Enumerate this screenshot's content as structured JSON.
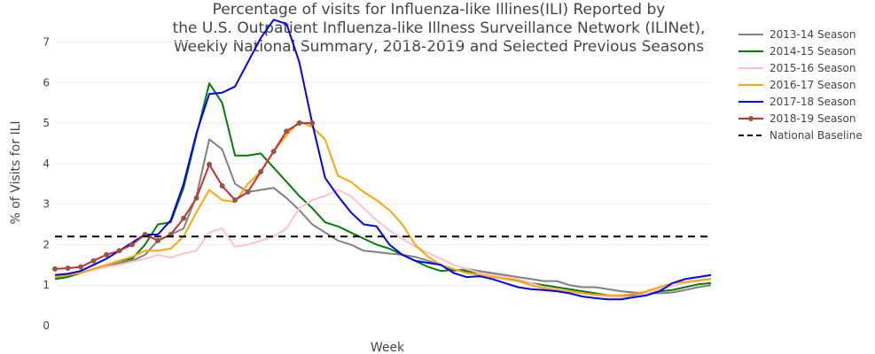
{
  "chart_data": {
    "type": "line",
    "title_lines": [
      "Percentage of visits for Influenza-like Illines(ILI) Reported by",
      "the U.S. Outpatient Influenza-like Illness Surveillance Network (ILINet),",
      "Weekly National Summary, 2018-2019 and Selected Previous Seasons"
    ],
    "xlabel": "Week",
    "ylabel": "% of Visits for ILI",
    "yticks": [
      0,
      1,
      2,
      3,
      4,
      5,
      6,
      7
    ],
    "ylim": [
      0,
      7.6
    ],
    "n_weeks": 52,
    "grid": true,
    "legend_position": "right",
    "series": [
      {
        "name": "2013-14 Season",
        "color": "#808080",
        "dash": false,
        "markers": false,
        "values": [
          1.2,
          1.25,
          1.3,
          1.4,
          1.45,
          1.55,
          1.6,
          1.75,
          2.1,
          2.25,
          2.4,
          3.2,
          4.6,
          4.35,
          3.5,
          3.3,
          3.35,
          3.4,
          3.15,
          2.85,
          2.5,
          2.3,
          2.1,
          2.0,
          1.85,
          1.82,
          1.78,
          1.75,
          1.7,
          1.6,
          1.5,
          1.35,
          1.4,
          1.35,
          1.3,
          1.25,
          1.2,
          1.15,
          1.1,
          1.1,
          1.0,
          0.95,
          0.95,
          0.9,
          0.85,
          0.82,
          0.8,
          0.8,
          0.82,
          0.88,
          0.95,
          1.0
        ]
      },
      {
        "name": "2014-15 Season",
        "color": "#008000",
        "dash": false,
        "markers": false,
        "values": [
          1.15,
          1.2,
          1.3,
          1.4,
          1.5,
          1.6,
          1.65,
          2.0,
          2.5,
          2.55,
          3.4,
          4.7,
          5.98,
          5.5,
          4.2,
          4.2,
          4.25,
          3.9,
          3.55,
          3.2,
          2.9,
          2.55,
          2.45,
          2.3,
          2.15,
          2.0,
          1.9,
          1.75,
          1.6,
          1.45,
          1.35,
          1.38,
          1.35,
          1.3,
          1.25,
          1.2,
          1.12,
          1.05,
          1.0,
          0.95,
          0.9,
          0.85,
          0.8,
          0.75,
          0.72,
          0.75,
          0.8,
          0.85,
          0.88,
          0.95,
          1.02,
          1.05
        ]
      },
      {
        "name": "2015-16 Season",
        "color": "#ffc0cb",
        "dash": false,
        "markers": false,
        "values": [
          1.25,
          1.28,
          1.3,
          1.38,
          1.45,
          1.5,
          1.58,
          1.65,
          1.75,
          1.68,
          1.78,
          1.85,
          2.3,
          2.4,
          1.95,
          2.0,
          2.1,
          2.2,
          2.4,
          2.9,
          3.1,
          3.2,
          3.35,
          3.2,
          2.9,
          2.6,
          2.35,
          2.15,
          1.95,
          1.8,
          1.65,
          1.5,
          1.4,
          1.3,
          1.25,
          1.2,
          1.15,
          1.05,
          0.95,
          0.9,
          0.85,
          0.8,
          0.75,
          0.72,
          0.7,
          0.72,
          0.8,
          0.9,
          0.98,
          1.05,
          1.1,
          1.15
        ]
      },
      {
        "name": "2016-17 Season",
        "color": "#ffa500",
        "dash": false,
        "markers": false,
        "values": [
          1.2,
          1.25,
          1.3,
          1.4,
          1.5,
          1.6,
          1.7,
          1.85,
          1.85,
          1.9,
          2.2,
          2.8,
          3.35,
          3.1,
          3.05,
          3.5,
          3.8,
          4.3,
          4.7,
          5.05,
          4.9,
          4.6,
          3.7,
          3.55,
          3.3,
          3.1,
          2.85,
          2.5,
          2.0,
          1.7,
          1.5,
          1.4,
          1.3,
          1.25,
          1.2,
          1.15,
          1.1,
          1.0,
          0.92,
          0.88,
          0.85,
          0.8,
          0.77,
          0.75,
          0.75,
          0.78,
          0.85,
          0.95,
          1.05,
          1.08,
          1.12,
          1.15
        ]
      },
      {
        "name": "2017-18 Season",
        "color": "#0000ff",
        "dash": false,
        "markers": false,
        "values": [
          1.25,
          1.28,
          1.35,
          1.5,
          1.65,
          1.85,
          2.05,
          2.25,
          2.25,
          2.6,
          3.5,
          4.75,
          5.72,
          5.75,
          5.9,
          6.5,
          7.1,
          7.55,
          7.45,
          6.5,
          5.0,
          3.65,
          3.2,
          2.8,
          2.5,
          2.45,
          2.0,
          1.75,
          1.6,
          1.55,
          1.5,
          1.3,
          1.2,
          1.22,
          1.15,
          1.05,
          0.95,
          0.9,
          0.88,
          0.85,
          0.8,
          0.72,
          0.68,
          0.65,
          0.65,
          0.7,
          0.75,
          0.85,
          1.05,
          1.15,
          1.2,
          1.25
        ]
      },
      {
        "name": "2018-19 Season",
        "color": "#d62728",
        "dash": false,
        "markers": true,
        "marker_color": "#8b5a4a",
        "values": [
          1.4,
          1.42,
          1.45,
          1.6,
          1.75,
          1.85,
          2.0,
          2.25,
          2.1,
          2.25,
          2.65,
          3.15,
          3.98,
          3.45,
          3.1,
          3.3,
          3.8,
          4.3,
          4.8,
          5.0,
          5.0
        ]
      },
      {
        "name": "National Baseline",
        "color": "#000000",
        "dash": true,
        "markers": false,
        "constant": 2.2
      }
    ]
  }
}
